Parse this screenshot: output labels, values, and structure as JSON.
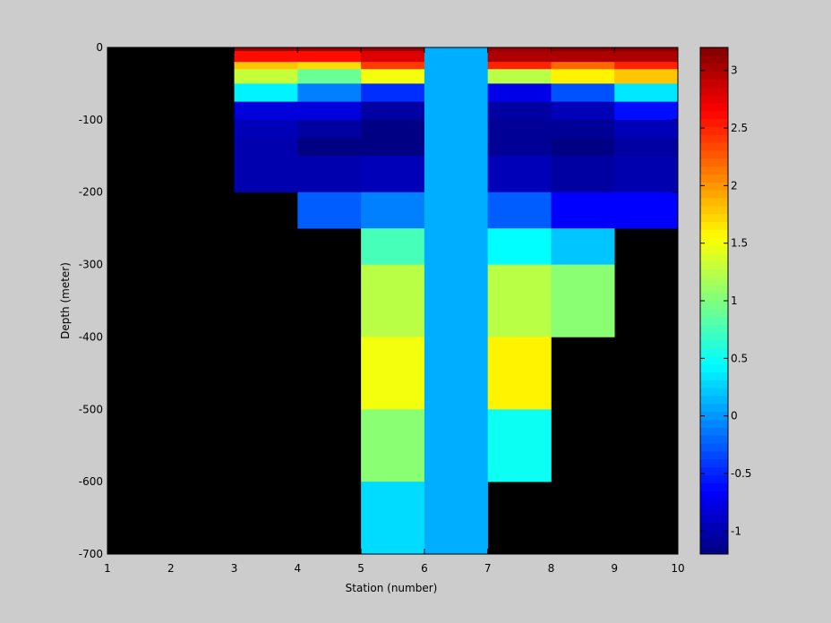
{
  "chart_data": {
    "type": "heatmap",
    "title": "",
    "xlabel": "Station (number)",
    "ylabel": "Depth (meter)",
    "xlim": [
      1,
      10
    ],
    "ylim": [
      -700,
      0
    ],
    "xticks": [
      1,
      2,
      3,
      4,
      5,
      6,
      7,
      8,
      9,
      10
    ],
    "yticks": [
      0,
      -100,
      -200,
      -300,
      -400,
      -500,
      -600,
      -700
    ],
    "background_color": "#000000",
    "colormap": "jet",
    "color_range": [
      -1.2,
      3.2
    ],
    "colorbar": {
      "position": "right",
      "ticks": [
        -1,
        -0.5,
        0,
        0.5,
        1,
        1.5,
        2,
        2.5,
        3
      ],
      "tick_labels": [
        "-1",
        "-0.5",
        "0",
        "0.5",
        "1",
        "1.5",
        "2",
        "2.5",
        "3"
      ]
    },
    "cells": [
      {
        "x": [
          3,
          4
        ],
        "y": [
          -5,
          0
        ],
        "v": 3.1
      },
      {
        "x": [
          3,
          4
        ],
        "y": [
          -20,
          -5
        ],
        "v": 2.6
      },
      {
        "x": [
          3,
          4
        ],
        "y": [
          -30,
          -20
        ],
        "v": 1.8
      },
      {
        "x": [
          3,
          4
        ],
        "y": [
          -50,
          -30
        ],
        "v": 1.3
      },
      {
        "x": [
          3,
          4
        ],
        "y": [
          -75,
          -50
        ],
        "v": 0.4
      },
      {
        "x": [
          3,
          4
        ],
        "y": [
          -100,
          -75
        ],
        "v": -0.8
      },
      {
        "x": [
          3,
          4
        ],
        "y": [
          -125,
          -100
        ],
        "v": -0.95
      },
      {
        "x": [
          3,
          4
        ],
        "y": [
          -150,
          -125
        ],
        "v": -1.0
      },
      {
        "x": [
          3,
          4
        ],
        "y": [
          -200,
          -150
        ],
        "v": -1.0
      },
      {
        "x": [
          4,
          5
        ],
        "y": [
          -5,
          0
        ],
        "v": 3.1
      },
      {
        "x": [
          4,
          5
        ],
        "y": [
          -20,
          -5
        ],
        "v": 2.6
      },
      {
        "x": [
          4,
          5
        ],
        "y": [
          -30,
          -20
        ],
        "v": 1.7
      },
      {
        "x": [
          4,
          5
        ],
        "y": [
          -50,
          -30
        ],
        "v": 0.9
      },
      {
        "x": [
          4,
          5
        ],
        "y": [
          -75,
          -50
        ],
        "v": -0.1
      },
      {
        "x": [
          4,
          5
        ],
        "y": [
          -100,
          -75
        ],
        "v": -0.8
      },
      {
        "x": [
          4,
          5
        ],
        "y": [
          -125,
          -100
        ],
        "v": -1.05
      },
      {
        "x": [
          4,
          5
        ],
        "y": [
          -150,
          -125
        ],
        "v": -1.18
      },
      {
        "x": [
          4,
          5
        ],
        "y": [
          -200,
          -150
        ],
        "v": -1.0
      },
      {
        "x": [
          4,
          5
        ],
        "y": [
          -250,
          -200
        ],
        "v": -0.25
      },
      {
        "x": [
          5,
          6
        ],
        "y": [
          -5,
          0
        ],
        "v": 3.1
      },
      {
        "x": [
          5,
          6
        ],
        "y": [
          -20,
          -5
        ],
        "v": 2.8
      },
      {
        "x": [
          5,
          6
        ],
        "y": [
          -30,
          -20
        ],
        "v": 2.4
      },
      {
        "x": [
          5,
          6
        ],
        "y": [
          -50,
          -30
        ],
        "v": 1.5
      },
      {
        "x": [
          5,
          6
        ],
        "y": [
          -75,
          -50
        ],
        "v": -0.45
      },
      {
        "x": [
          5,
          6
        ],
        "y": [
          -100,
          -75
        ],
        "v": -1.05
      },
      {
        "x": [
          5,
          6
        ],
        "y": [
          -150,
          -100
        ],
        "v": -1.18
      },
      {
        "x": [
          5,
          6
        ],
        "y": [
          -200,
          -150
        ],
        "v": -0.95
      },
      {
        "x": [
          5,
          6
        ],
        "y": [
          -250,
          -200
        ],
        "v": -0.1
      },
      {
        "x": [
          5,
          6
        ],
        "y": [
          -300,
          -250
        ],
        "v": 0.75
      },
      {
        "x": [
          5,
          6
        ],
        "y": [
          -400,
          -300
        ],
        "v": 1.25
      },
      {
        "x": [
          5,
          6
        ],
        "y": [
          -500,
          -400
        ],
        "v": 1.5
      },
      {
        "x": [
          5,
          6
        ],
        "y": [
          -600,
          -500
        ],
        "v": 1.05
      },
      {
        "x": [
          5,
          6
        ],
        "y": [
          -700,
          -600
        ],
        "v": 0.3
      },
      {
        "x": [
          6,
          7
        ],
        "y": [
          -700,
          0
        ],
        "v": 0.1
      },
      {
        "x": [
          7,
          8
        ],
        "y": [
          -5,
          0
        ],
        "v": 3.1
      },
      {
        "x": [
          7,
          8
        ],
        "y": [
          -20,
          -5
        ],
        "v": 3.0
      },
      {
        "x": [
          7,
          8
        ],
        "y": [
          -30,
          -20
        ],
        "v": 2.5
      },
      {
        "x": [
          7,
          8
        ],
        "y": [
          -50,
          -30
        ],
        "v": 1.25
      },
      {
        "x": [
          7,
          8
        ],
        "y": [
          -75,
          -50
        ],
        "v": -0.75
      },
      {
        "x": [
          7,
          8
        ],
        "y": [
          -100,
          -75
        ],
        "v": -1.05
      },
      {
        "x": [
          7,
          8
        ],
        "y": [
          -150,
          -100
        ],
        "v": -1.1
      },
      {
        "x": [
          7,
          8
        ],
        "y": [
          -200,
          -150
        ],
        "v": -0.95
      },
      {
        "x": [
          7,
          8
        ],
        "y": [
          -250,
          -200
        ],
        "v": -0.25
      },
      {
        "x": [
          7,
          8
        ],
        "y": [
          -300,
          -250
        ],
        "v": 0.45
      },
      {
        "x": [
          7,
          8
        ],
        "y": [
          -400,
          -300
        ],
        "v": 1.25
      },
      {
        "x": [
          7,
          8
        ],
        "y": [
          -500,
          -400
        ],
        "v": 1.6
      },
      {
        "x": [
          7,
          8
        ],
        "y": [
          -600,
          -500
        ],
        "v": 0.5
      },
      {
        "x": [
          8,
          9
        ],
        "y": [
          -5,
          0
        ],
        "v": 3.2
      },
      {
        "x": [
          8,
          9
        ],
        "y": [
          -20,
          -5
        ],
        "v": 3.0
      },
      {
        "x": [
          8,
          9
        ],
        "y": [
          -30,
          -20
        ],
        "v": 2.2
      },
      {
        "x": [
          8,
          9
        ],
        "y": [
          -50,
          -30
        ],
        "v": 1.6
      },
      {
        "x": [
          8,
          9
        ],
        "y": [
          -75,
          -50
        ],
        "v": -0.3
      },
      {
        "x": [
          8,
          9
        ],
        "y": [
          -100,
          -75
        ],
        "v": -0.95
      },
      {
        "x": [
          8,
          9
        ],
        "y": [
          -125,
          -100
        ],
        "v": -1.1
      },
      {
        "x": [
          8,
          9
        ],
        "y": [
          -150,
          -125
        ],
        "v": -1.18
      },
      {
        "x": [
          8,
          9
        ],
        "y": [
          -200,
          -150
        ],
        "v": -1.05
      },
      {
        "x": [
          8,
          9
        ],
        "y": [
          -250,
          -200
        ],
        "v": -0.65
      },
      {
        "x": [
          8,
          9
        ],
        "y": [
          -300,
          -250
        ],
        "v": 0.2
      },
      {
        "x": [
          8,
          9
        ],
        "y": [
          -400,
          -300
        ],
        "v": 1.05
      },
      {
        "x": [
          9,
          10
        ],
        "y": [
          -5,
          0
        ],
        "v": 3.2
      },
      {
        "x": [
          9,
          10
        ],
        "y": [
          -20,
          -5
        ],
        "v": 3.0
      },
      {
        "x": [
          9,
          10
        ],
        "y": [
          -30,
          -20
        ],
        "v": 2.5
      },
      {
        "x": [
          9,
          10
        ],
        "y": [
          -50,
          -30
        ],
        "v": 1.8
      },
      {
        "x": [
          9,
          10
        ],
        "y": [
          -75,
          -50
        ],
        "v": 0.35
      },
      {
        "x": [
          9,
          10
        ],
        "y": [
          -100,
          -75
        ],
        "v": -0.6
      },
      {
        "x": [
          9,
          10
        ],
        "y": [
          -125,
          -100
        ],
        "v": -0.95
      },
      {
        "x": [
          9,
          10
        ],
        "y": [
          -150,
          -125
        ],
        "v": -1.05
      },
      {
        "x": [
          9,
          10
        ],
        "y": [
          -200,
          -150
        ],
        "v": -1.0
      },
      {
        "x": [
          9,
          10
        ],
        "y": [
          -250,
          -200
        ],
        "v": -0.65
      }
    ]
  }
}
